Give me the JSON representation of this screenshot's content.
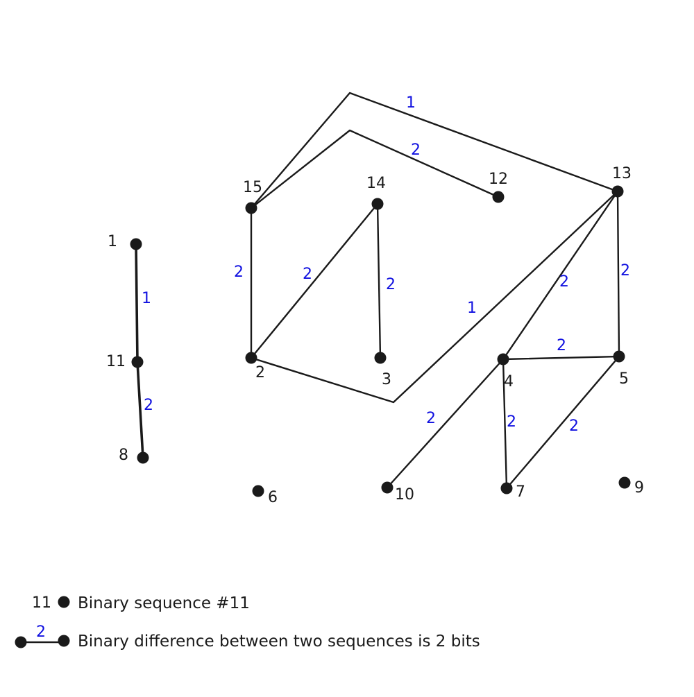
{
  "diagram": {
    "nodes": [
      {
        "id": "1",
        "label": "1"
      },
      {
        "id": "2",
        "label": "2"
      },
      {
        "id": "3",
        "label": "3"
      },
      {
        "id": "4",
        "label": "4"
      },
      {
        "id": "5",
        "label": "5"
      },
      {
        "id": "6",
        "label": "6"
      },
      {
        "id": "7",
        "label": "7"
      },
      {
        "id": "8",
        "label": "8"
      },
      {
        "id": "9",
        "label": "9"
      },
      {
        "id": "10",
        "label": "10"
      },
      {
        "id": "11",
        "label": "11"
      },
      {
        "id": "12",
        "label": "12"
      },
      {
        "id": "13",
        "label": "13"
      },
      {
        "id": "14",
        "label": "14"
      },
      {
        "id": "15",
        "label": "15"
      }
    ],
    "edges": [
      {
        "from": "1",
        "to": "11",
        "weight": "1"
      },
      {
        "from": "11",
        "to": "8",
        "weight": "2"
      },
      {
        "from": "15",
        "to": "13",
        "weight": "1"
      },
      {
        "from": "15",
        "to": "12",
        "weight": "2"
      },
      {
        "from": "15",
        "to": "2",
        "weight": "2"
      },
      {
        "from": "2",
        "to": "14",
        "weight": "2"
      },
      {
        "from": "14",
        "to": "3",
        "weight": "2"
      },
      {
        "from": "2",
        "to": "13",
        "weight": "1"
      },
      {
        "from": "13",
        "to": "4",
        "weight": "2"
      },
      {
        "from": "13",
        "to": "5",
        "weight": "2"
      },
      {
        "from": "4",
        "to": "5",
        "weight": "2"
      },
      {
        "from": "4",
        "to": "10",
        "weight": "2"
      },
      {
        "from": "4",
        "to": "7",
        "weight": "2"
      },
      {
        "from": "5",
        "to": "7",
        "weight": "2"
      }
    ]
  },
  "legend": {
    "node_example_label": "11",
    "node_text": "Binary sequence #11",
    "edge_example_label": "2",
    "edge_text": "Binary difference between two sequences is 2 bits"
  },
  "colors": {
    "line": "#1a1a1a",
    "node": "#1a1a1a",
    "weight_label": "#1010e0",
    "node_label": "#1a1a1a"
  }
}
